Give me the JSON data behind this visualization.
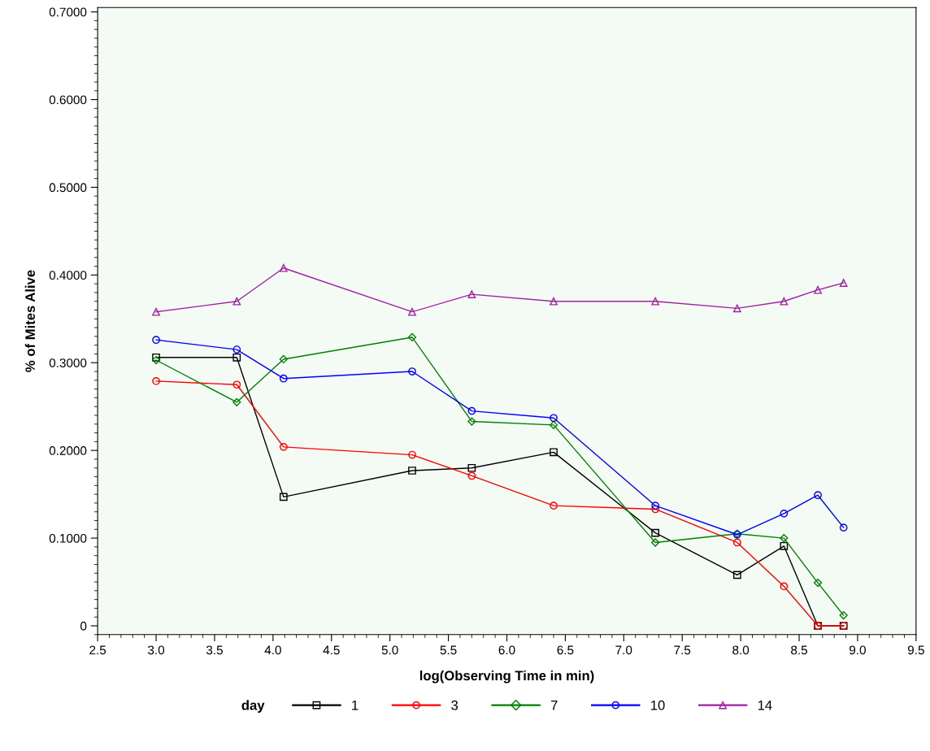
{
  "chart_data": {
    "type": "line",
    "xlabel": "log(Observing Time in min)",
    "ylabel": "% of Mites Alive",
    "legend_title": "day",
    "legend": "bottom",
    "grid": false,
    "line_style": "solid",
    "xlim": [
      2.5,
      9.5
    ],
    "xticks": [
      {
        "value": 2.5,
        "label": "2.5"
      },
      {
        "value": 3,
        "label": "3.0"
      },
      {
        "value": 3.5,
        "label": "3.5"
      },
      {
        "value": 4,
        "label": "4.0"
      },
      {
        "value": 4.5,
        "label": "4.5"
      },
      {
        "value": 5,
        "label": "5.0"
      },
      {
        "value": 5.5,
        "label": "5.5"
      },
      {
        "value": 6,
        "label": "6.0"
      },
      {
        "value": 6.5,
        "label": "6.5"
      },
      {
        "value": 7,
        "label": "7.0"
      },
      {
        "value": 7.5,
        "label": "7.5"
      },
      {
        "value": 8,
        "label": "8.0"
      },
      {
        "value": 8.5,
        "label": "8.5"
      },
      {
        "value": 9,
        "label": "9.0"
      },
      {
        "value": 9.5,
        "label": "9.5"
      }
    ],
    "ylim": [
      -0.01,
      0.705
    ],
    "yticks": [
      0,
      {
        "value": 0.1,
        "label": "0.1000"
      },
      {
        "value": 0.2,
        "label": "0.2000"
      },
      {
        "value": 0.3,
        "label": "0.3000"
      },
      {
        "value": 0.4,
        "label": "0.4000"
      },
      {
        "value": 0.5,
        "label": "0.5000"
      },
      {
        "value": 0.6,
        "label": "0.6000"
      },
      {
        "value": 0.7,
        "label": "0.7000"
      }
    ],
    "x": [
      3.0,
      3.69,
      4.09,
      5.19,
      5.7,
      6.4,
      7.27,
      7.97,
      8.37,
      8.66,
      8.88
    ],
    "series": [
      {
        "name": "1",
        "color": "#000000",
        "marker": "square",
        "values": [
          0.306,
          0.306,
          0.147,
          0.177,
          0.18,
          0.198,
          0.106,
          0.058,
          0.091,
          0,
          0
        ]
      },
      {
        "name": "3",
        "color": "#ff0000",
        "marker": "circle",
        "values": [
          0.279,
          0.275,
          0.204,
          0.195,
          0.171,
          0.137,
          0.133,
          0.095,
          0.045,
          0,
          0
        ]
      },
      {
        "name": "7",
        "color": "#008000",
        "marker": "diamond",
        "values": [
          0.303,
          0.255,
          0.304,
          0.329,
          0.233,
          0.229,
          0.095,
          0.105,
          0.1,
          0.049,
          0.012
        ]
      },
      {
        "name": "10",
        "color": "#0000ff",
        "marker": "circle",
        "values": [
          0.326,
          0.315,
          0.282,
          0.29,
          0.245,
          0.237,
          0.137,
          0.104,
          0.128,
          0.149,
          0.112
        ]
      },
      {
        "name": "14",
        "color": "#a020a0",
        "marker": "triangle",
        "values": [
          0.358,
          0.37,
          0.408,
          0.358,
          0.378,
          0.37,
          0.37,
          0.362,
          0.37,
          0.383,
          0.391
        ]
      }
    ]
  }
}
